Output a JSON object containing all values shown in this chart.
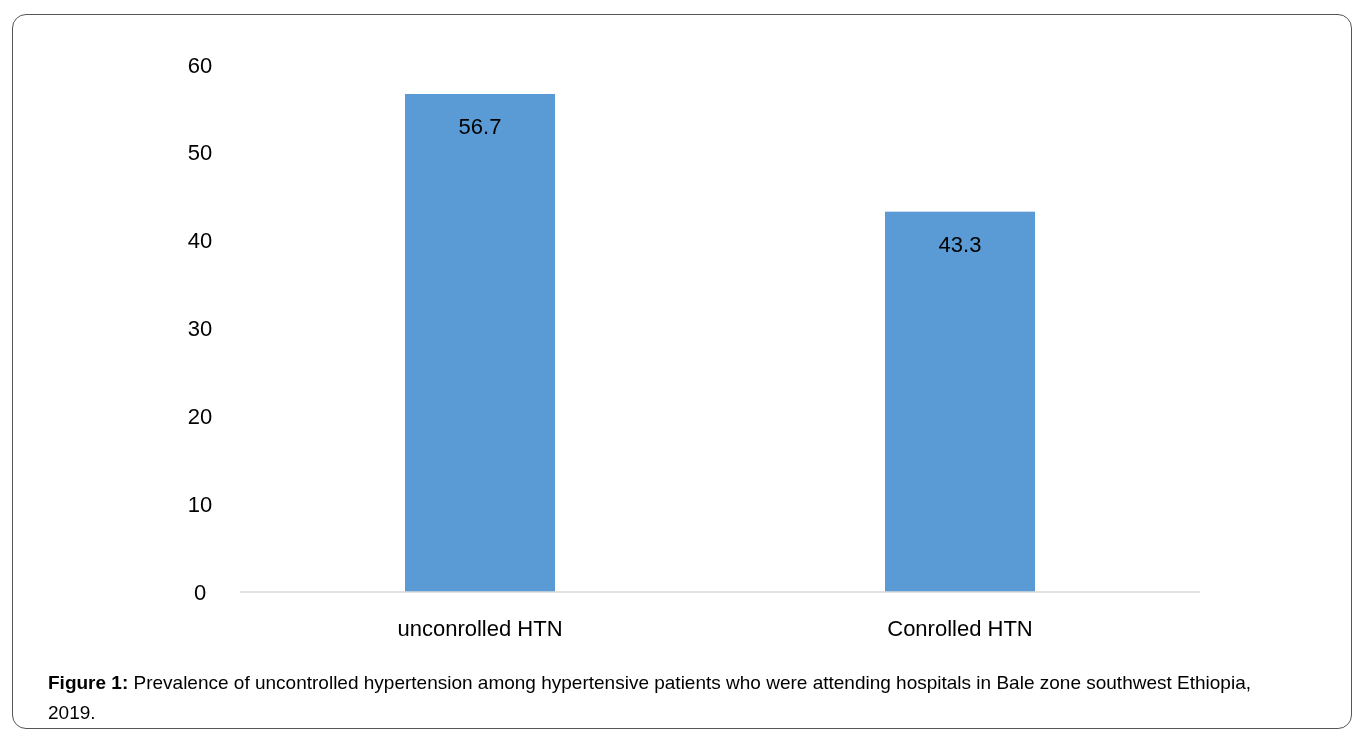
{
  "chart_data": {
    "type": "bar",
    "title": "Figure 1: Prevalence of uncontrolled hypertension among hypertensive patients who were attending hospitals in Bale zone southwest Ethiopia, 2019.",
    "categories": [
      "unconrolled HTN",
      "Conrolled HTN"
    ],
    "values": [
      56.7,
      43.3
    ],
    "color": "#5b9bd5",
    "ylim": [
      0,
      60
    ],
    "yticks": [
      0,
      10,
      20,
      30,
      40,
      50,
      60
    ],
    "grid": false,
    "data_labels": true
  }
}
